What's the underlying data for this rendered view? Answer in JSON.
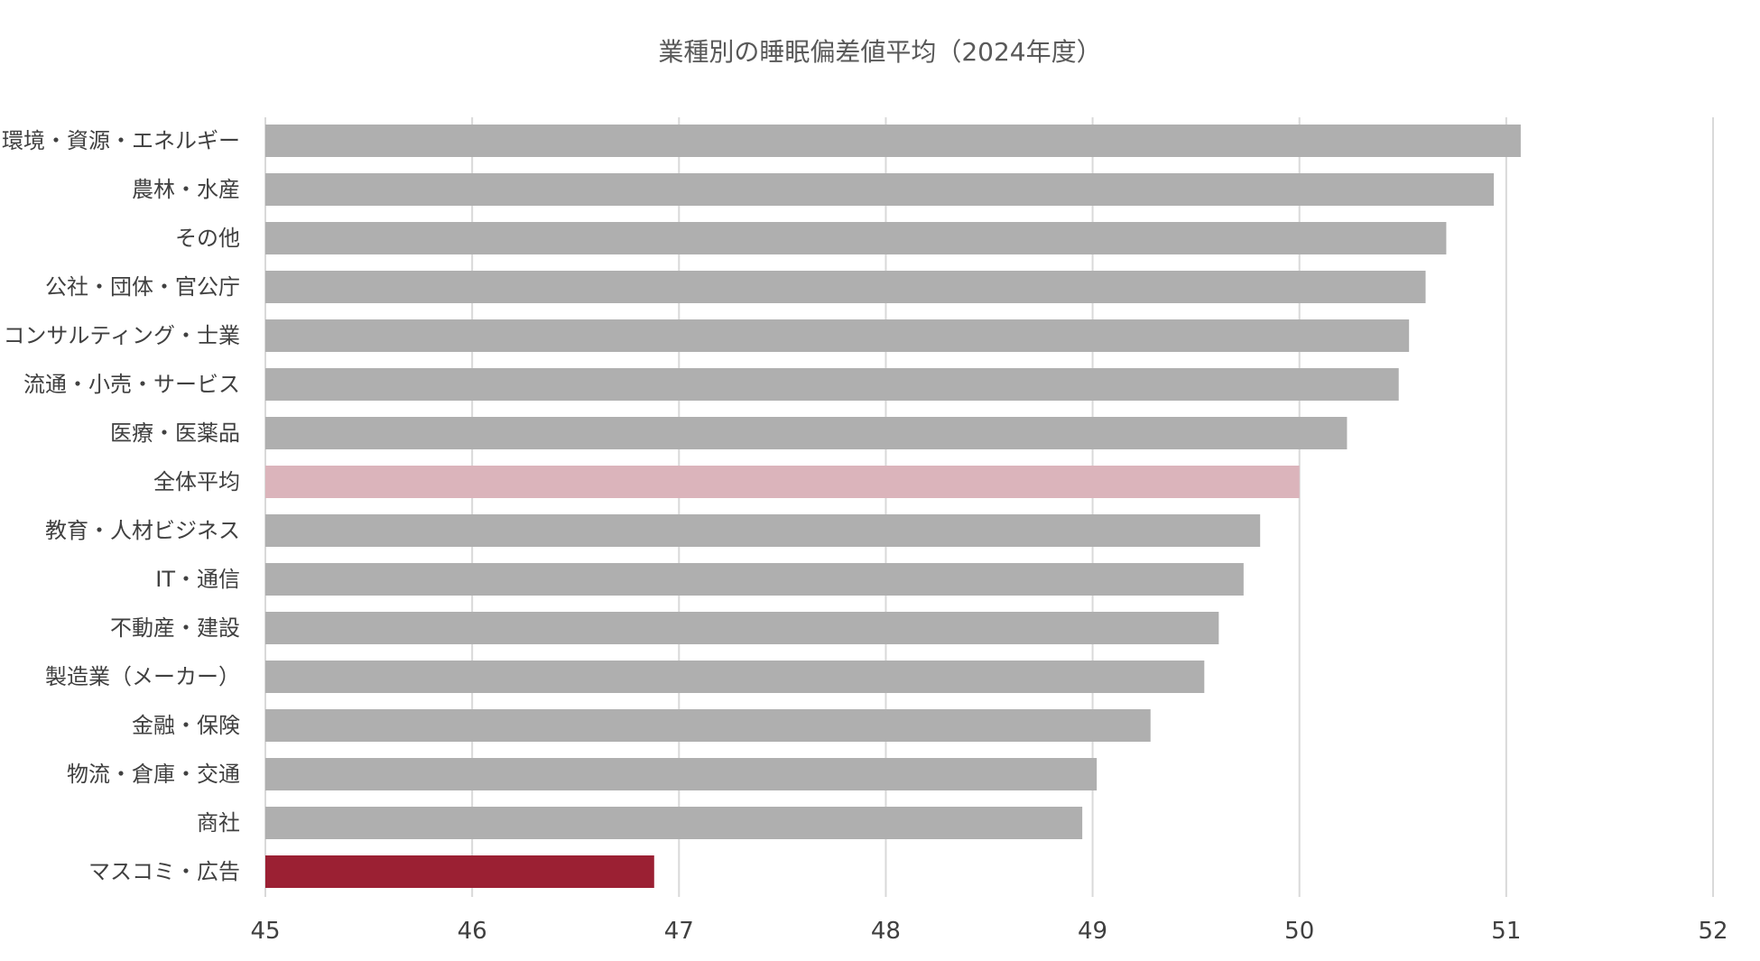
{
  "chart_data": {
    "type": "bar",
    "orientation": "horizontal",
    "title": "業種別の睡眠偏差値平均（2024年度）",
    "xlabel": "",
    "ylabel": "",
    "xlim": [
      45,
      52
    ],
    "ticks": [
      "45",
      "46",
      "47",
      "48",
      "49",
      "50",
      "51",
      "52"
    ],
    "grid": true,
    "legend": "none",
    "categories": [
      "環境・資源・エネルギー",
      "農林・水産",
      "その他",
      "公社・団体・官公庁",
      "コンサルティング・士業",
      "流通・小売・サービス",
      "医療・医薬品",
      "全体平均",
      "教育・人材ビジネス",
      "IT・通信",
      "不動産・建設",
      "製造業（メーカー）",
      "金融・保険",
      "物流・倉庫・交通",
      "商社",
      "マスコミ・広告"
    ],
    "values": [
      51.07,
      50.94,
      50.71,
      50.61,
      50.53,
      50.48,
      50.23,
      50.0,
      49.81,
      49.73,
      49.61,
      49.54,
      49.28,
      49.02,
      48.95,
      46.88
    ],
    "colors": {
      "default": "#afafaf",
      "average": "#dbb4bb",
      "lowest": "#9b2033",
      "grid": "#d9d9d9",
      "text": "#404040"
    },
    "highlight": {
      "全体平均": "average",
      "マスコミ・広告": "lowest"
    }
  }
}
